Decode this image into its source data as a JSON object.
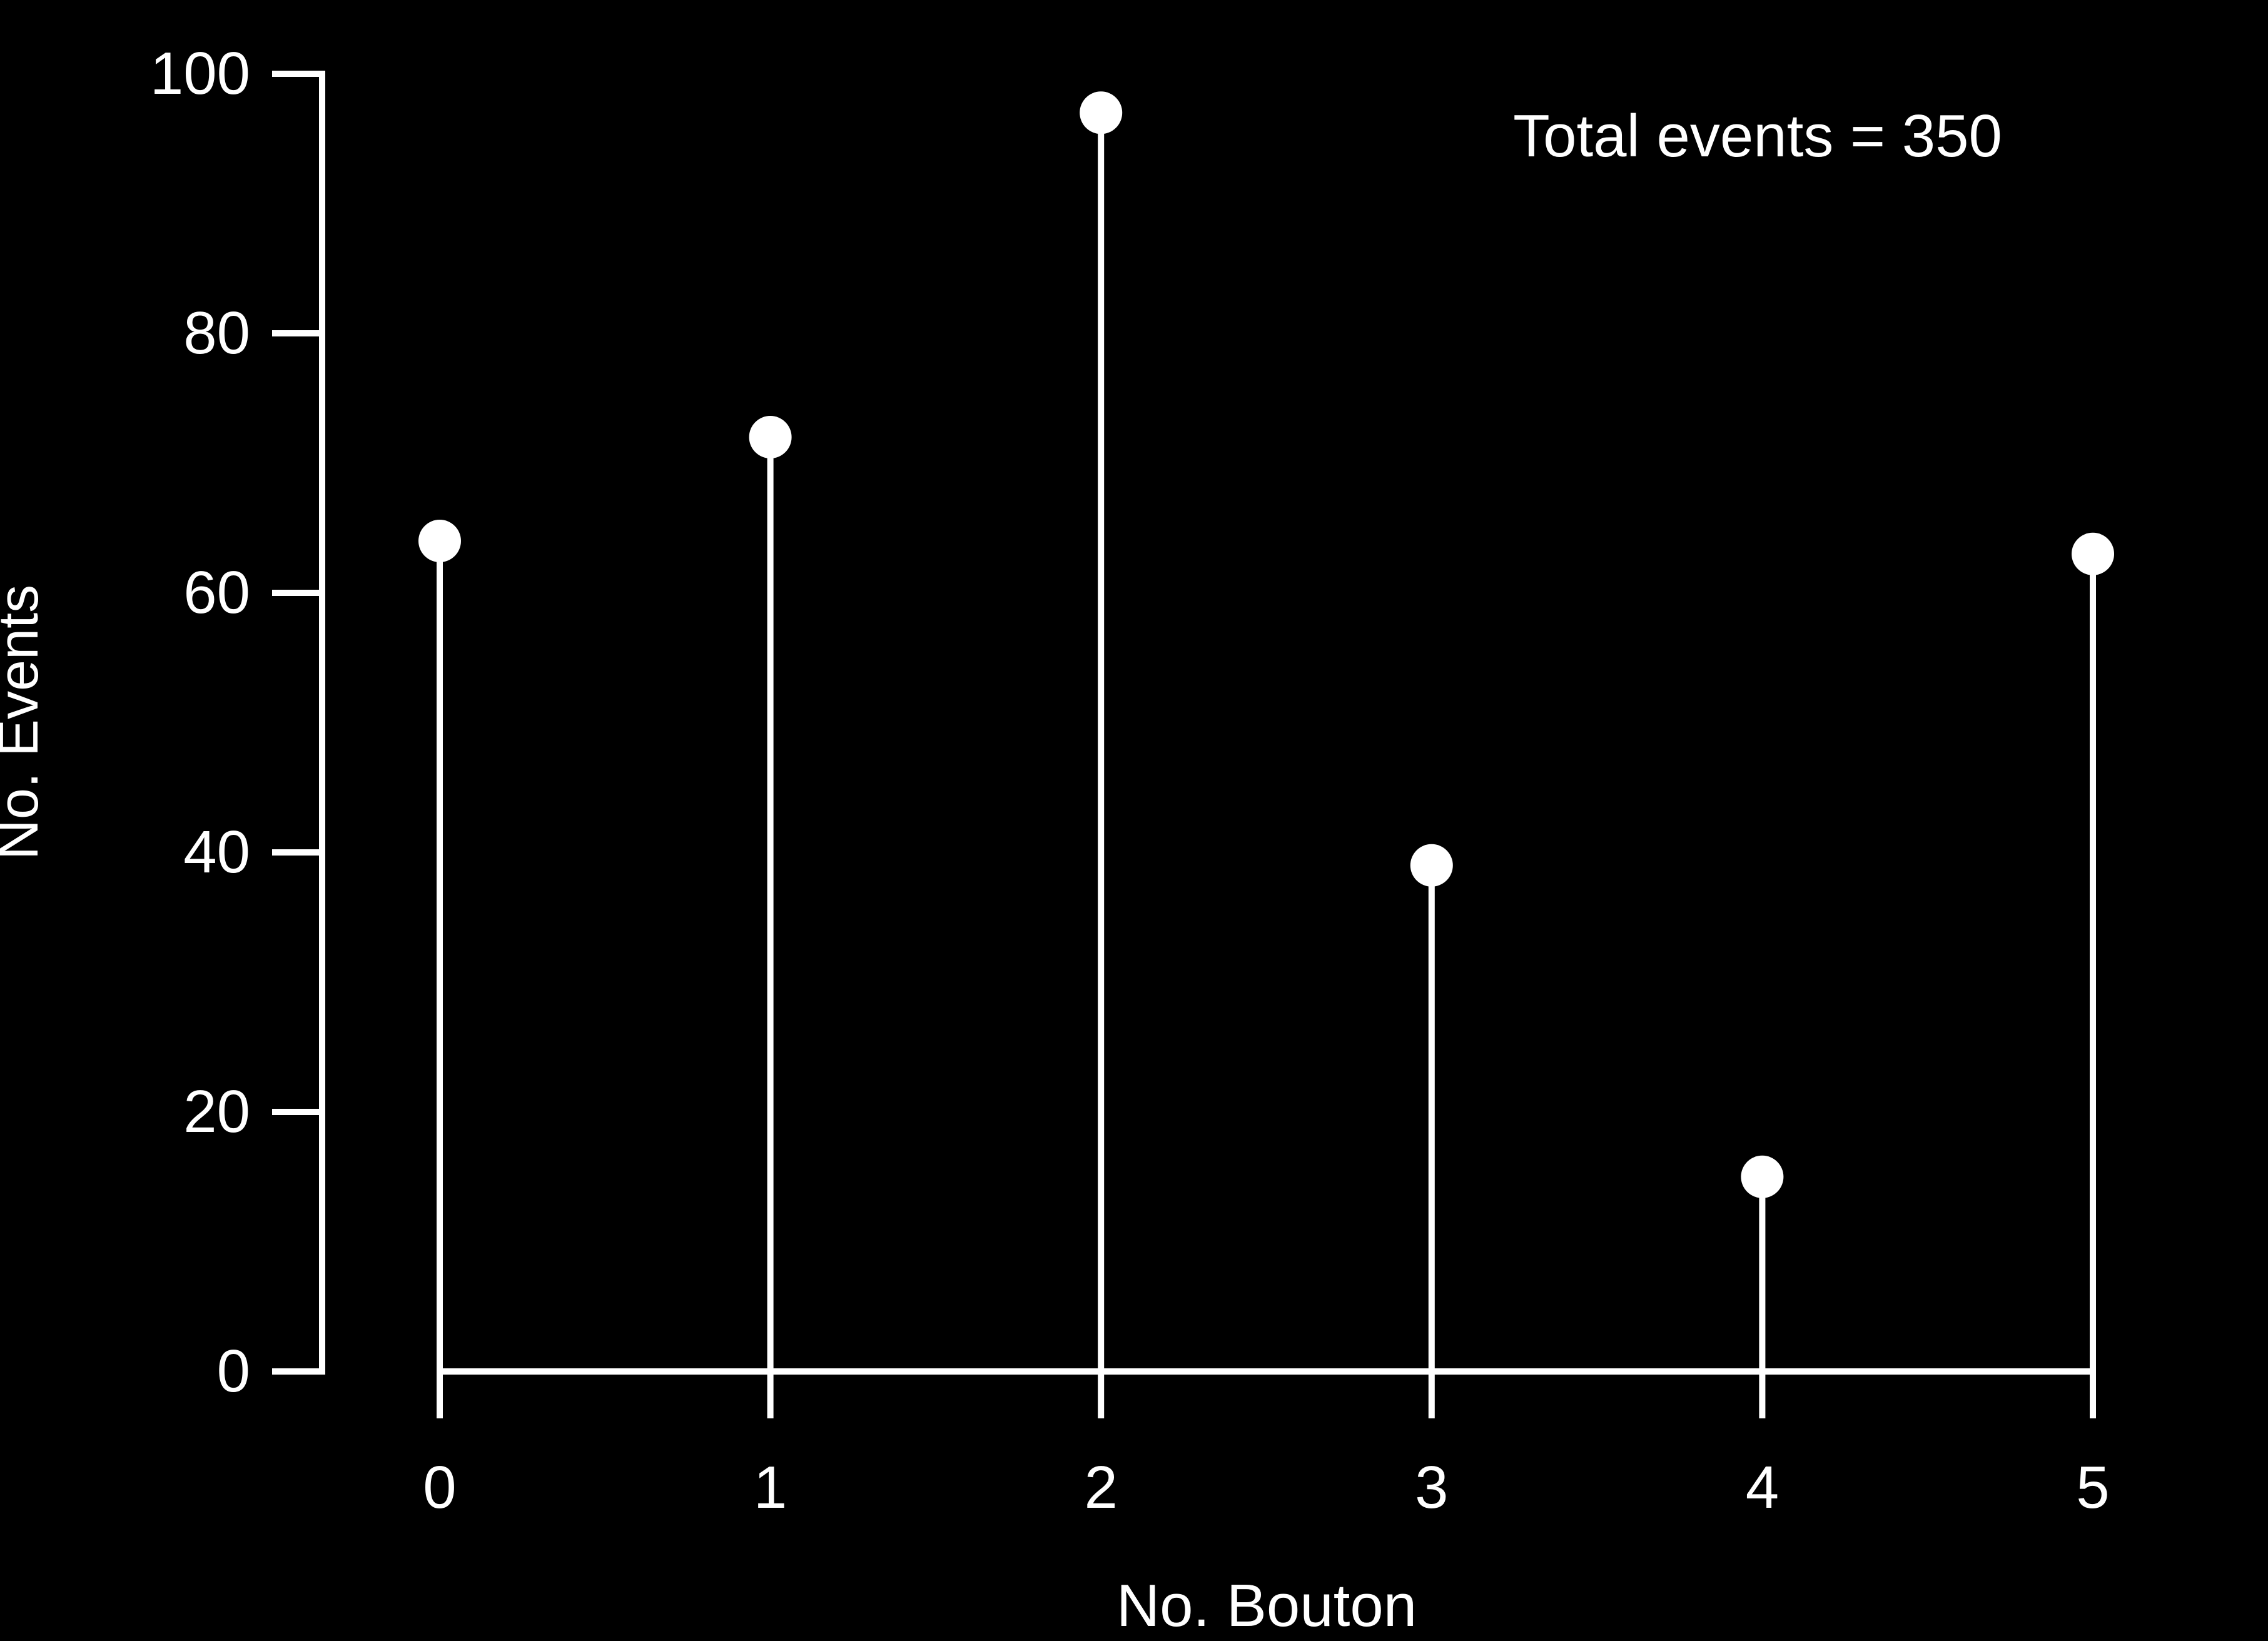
{
  "chart_data": {
    "type": "stem",
    "x": [
      0,
      1,
      2,
      3,
      4,
      5
    ],
    "values": [
      64,
      72,
      97,
      39,
      15,
      63
    ],
    "xlabel": "No. Bouton",
    "ylabel": "No. Events",
    "xticks": [
      "0",
      "1",
      "2",
      "3",
      "4",
      "5"
    ],
    "yticks": [
      "0",
      "20",
      "40",
      "60",
      "80",
      "100"
    ],
    "ylim": [
      0,
      100
    ],
    "xlim": [
      0,
      5
    ],
    "grid": false,
    "annotation": "Total events = 350",
    "annotation_placement": "top-right",
    "colors": {
      "background": "#000000",
      "foreground": "#ffffff"
    }
  }
}
